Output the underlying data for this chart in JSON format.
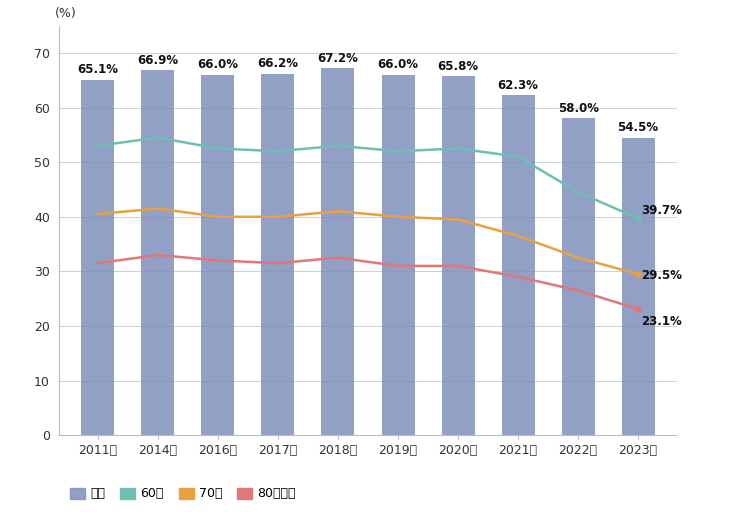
{
  "years": [
    "2011年",
    "2014年",
    "2016年",
    "2017年",
    "2018年",
    "2019年",
    "2020年",
    "2021年",
    "2022年",
    "2023年"
  ],
  "bar_values": [
    65.1,
    66.9,
    66.0,
    66.2,
    67.2,
    66.0,
    65.8,
    62.3,
    58.0,
    54.5
  ],
  "bar_labels": [
    "65.1%",
    "66.9%",
    "66.0%",
    "66.2%",
    "67.2%",
    "66.0%",
    "65.8%",
    "62.3%",
    "58.0%",
    "54.5%"
  ],
  "line_60": [
    53.0,
    54.5,
    52.5,
    52.0,
    53.0,
    52.0,
    52.5,
    51.0,
    44.5,
    39.7
  ],
  "line_70": [
    40.5,
    41.5,
    40.0,
    40.0,
    41.0,
    40.0,
    39.5,
    36.5,
    32.5,
    29.5
  ],
  "line_80": [
    31.5,
    33.0,
    32.0,
    31.5,
    32.5,
    31.0,
    31.0,
    29.0,
    26.5,
    23.1
  ],
  "line_60_label": "60代",
  "line_70_label": "70代",
  "line_80_label": "80代以上",
  "bar_label": "全体",
  "bar_color": "#8090bc",
  "line_60_color": "#6dbfb2",
  "line_70_color": "#e8a040",
  "line_80_color": "#e07878",
  "ylabel": "(%)",
  "ylim": [
    0,
    75
  ],
  "yticks": [
    0,
    10,
    20,
    30,
    40,
    50,
    60,
    70
  ],
  "background_color": "#ffffff",
  "grid_color": "#d0d0d0",
  "last_labels": [
    "39.7%",
    "29.5%",
    "23.1%"
  ]
}
